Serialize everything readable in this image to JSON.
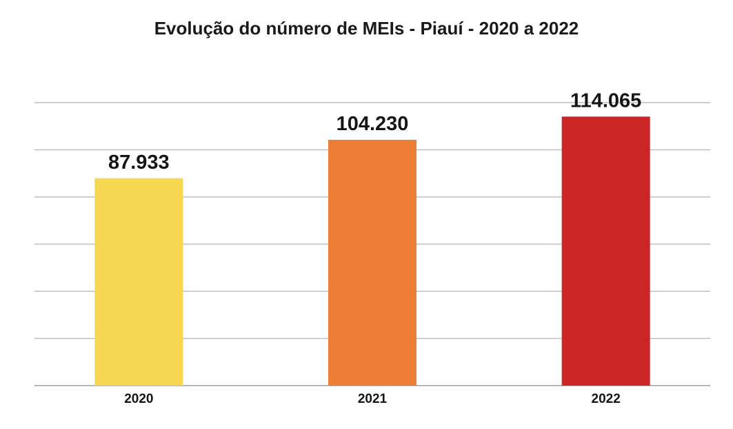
{
  "chart_data": {
    "type": "bar",
    "title": "Evolução do número de MEIs - Piauí - 2020 a 2022",
    "categories": [
      "2020",
      "2021",
      "2022"
    ],
    "values": [
      87933,
      104230,
      114065
    ],
    "value_labels": [
      "87.933",
      "104.230",
      "114.065"
    ],
    "bar_colors": [
      "#F7D651",
      "#EC7E35",
      "#CB2625"
    ],
    "gridline_color": "#BDBDBD",
    "ylim": [
      0,
      120000
    ],
    "grid": true,
    "legend": "none"
  }
}
